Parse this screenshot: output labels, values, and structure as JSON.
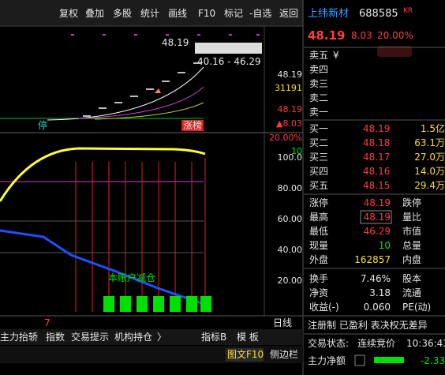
{
  "toolbar": [
    "复权",
    "叠加",
    "多股",
    "统计",
    "画线",
    "F10",
    "标记",
    "-自选",
    "返回"
  ],
  "stock": {
    "name": "上纬新材",
    "code": "688585",
    "tag": "KR",
    "price": "48.19",
    "change": "8.03",
    "pct": "20.00%"
  },
  "kline": {
    "price_label": "48.19",
    "range": "40.16 - 46.29",
    "stop": "停",
    "limit_tag": "涨榜",
    "right_labels": [
      "48.19",
      "31191",
      "48.19",
      "▲8.03"
    ]
  },
  "indicator": {
    "right_labels": [
      "20.00%",
      "10",
      "100.0",
      "80.00",
      "60.00",
      "40.00",
      "20.00"
    ],
    "annotation": "本账户减仓",
    "x_label": "7",
    "period": "日线"
  },
  "tabs": [
    "主力抬轿",
    "指数",
    "交易提示",
    "机构持仓",
    "〉"
  ],
  "tabs_right": [
    "指标B",
    "模 板"
  ],
  "footer": [
    "图文F10",
    "侧边栏"
  ],
  "order_book": {
    "sell": [
      [
        "卖五",
        "¥"
      ],
      [
        "卖四"
      ],
      [
        "卖三"
      ],
      [
        "卖二"
      ],
      [
        "卖一"
      ]
    ],
    "buy": [
      [
        "买一",
        "48.19",
        "1.5亿"
      ],
      [
        "买二",
        "48.18",
        "63.1万"
      ],
      [
        "买三",
        "48.17",
        "27.0万"
      ],
      [
        "买四",
        "48.16",
        "14.0万"
      ],
      [
        "买五",
        "48.15",
        "29.4万"
      ]
    ]
  },
  "stats": [
    [
      "涨停",
      "48.19",
      "跌停"
    ],
    [
      "最高",
      "48.19",
      "量比"
    ],
    [
      "最低",
      "46.29",
      "市值"
    ],
    [
      "现量",
      "10",
      "总量"
    ],
    [
      "外盘",
      "162857",
      "内盘"
    ],
    [
      "换手",
      "7.46%",
      "股本"
    ],
    [
      "净资",
      "3.18",
      "流通"
    ],
    [
      "收益(-)",
      "0.060",
      "PE(动)"
    ]
  ],
  "tags": "注册制 已盈利 表决权无差异",
  "status": {
    "label": "交易状态:",
    "state": "连续竞价",
    "time": "10:36:43"
  },
  "flow": {
    "label": "主力净额",
    "value": "-2.33"
  }
}
